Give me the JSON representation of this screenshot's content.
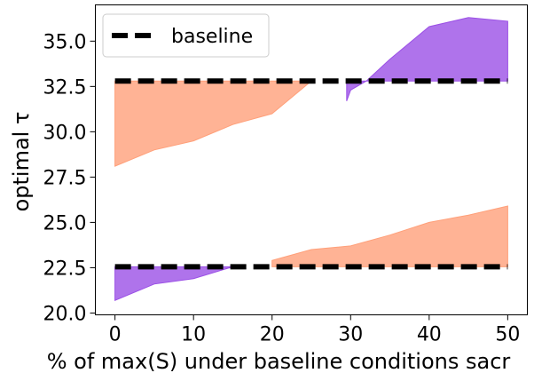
{
  "chart_data": {
    "type": "area",
    "xlabel": "% of max(S) under baseline conditions sacr",
    "ylabel": "optimal τ",
    "xlim": [
      -2.5,
      52.5
    ],
    "ylim": [
      19.9,
      37.0
    ],
    "xticks": [
      0,
      10,
      20,
      30,
      40,
      50
    ],
    "yticks": [
      20.0,
      22.5,
      25.0,
      27.5,
      30.0,
      32.5,
      35.0
    ],
    "ytick_labels": [
      "20.0",
      "22.5",
      "25.0",
      "27.5",
      "30.0",
      "32.5",
      "35.0"
    ],
    "grid": false,
    "legend": {
      "position": "top-left",
      "entries": [
        {
          "label": "baseline",
          "style": "dashed",
          "color": "#000000"
        }
      ]
    },
    "baselines": [
      {
        "name": "baseline",
        "y": 32.8
      },
      {
        "y": 22.55
      }
    ],
    "fills": [
      {
        "color": "#FFA07A",
        "baseline": 32.8,
        "x": [
          0,
          5,
          10,
          15,
          20,
          25
        ],
        "y": [
          28.1,
          29.0,
          29.5,
          30.4,
          31.0,
          32.8
        ]
      },
      {
        "color": "#9B50E6",
        "baseline": 32.8,
        "x": [
          29.5,
          30,
          32,
          35,
          40,
          45,
          50
        ],
        "y": [
          31.7,
          32.3,
          32.8,
          34.0,
          35.8,
          36.3,
          36.1
        ]
      },
      {
        "color": "#9B50E6",
        "baseline": 22.55,
        "x": [
          0,
          5,
          10,
          15
        ],
        "y": [
          20.7,
          21.6,
          21.9,
          22.55
        ]
      },
      {
        "color": "#FFA07A",
        "baseline": 22.55,
        "x": [
          20,
          25,
          30,
          35,
          40,
          45,
          50
        ],
        "y": [
          22.9,
          23.5,
          23.7,
          24.3,
          25.0,
          25.4,
          25.9
        ]
      }
    ]
  }
}
